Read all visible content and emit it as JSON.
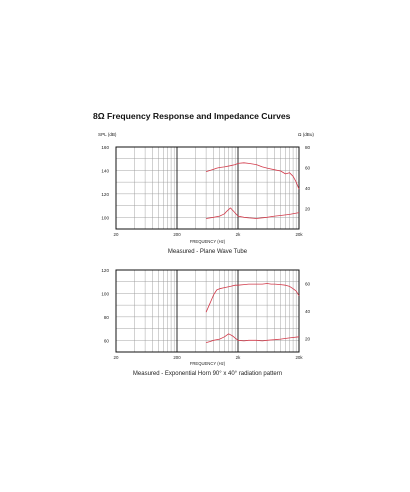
{
  "heading": "8Ω Frequency Response and Impedance Curves",
  "colors": {
    "curve": "#d23a4a",
    "grid": "#9a9a9a",
    "axis": "#111111"
  },
  "chart_data": [
    {
      "type": "line",
      "title": "Measured - Plane Wave Tube",
      "xlabel": "FREQUENCY (Hz)",
      "x_scale": "log",
      "xlim": [
        20,
        20000
      ],
      "x_ticks": [
        "20",
        "200",
        "2k",
        "20k"
      ],
      "ylabel_left": "SPL (dB)",
      "ylabel_right": "Ω (dBu)",
      "y_ticks_left": [
        "160",
        "140",
        "120",
        "100"
      ],
      "y_ticks_right": [
        "80",
        "60",
        "40",
        "20"
      ],
      "ylim": [
        90,
        160
      ],
      "grid": true,
      "series": [
        {
          "x": [
            600,
            700,
            800,
            900,
            1000,
            1200,
            1500,
            1800,
            2000,
            2500,
            3000,
            4000,
            5000,
            6000,
            8000,
            10000,
            12000,
            14000,
            16000,
            18000,
            20000
          ],
          "y": [
            139,
            140,
            141,
            142,
            142.5,
            143,
            144,
            145,
            146,
            146.5,
            146,
            145,
            143,
            142,
            140.5,
            139.5,
            137,
            138,
            135,
            130,
            124
          ]
        },
        {
          "x": [
            600,
            700,
            800,
            1000,
            1200,
            1300,
            1500,
            1700,
            2000,
            2500,
            3000,
            4000,
            6000,
            8000,
            10000,
            14000,
            20000
          ],
          "y": [
            99,
            99.5,
            100,
            101,
            103,
            105,
            108,
            105,
            101,
            100,
            99.5,
            99,
            100,
            101,
            101.5,
            102.5,
            104
          ]
        }
      ]
    },
    {
      "type": "line",
      "title": "Measured - Exponential Horn 90° x 40° radiation pattern",
      "xlabel": "FREQUENCY (Hz)",
      "x_scale": "log",
      "xlim": [
        20,
        20000
      ],
      "x_ticks": [
        "20",
        "200",
        "2k",
        "20k"
      ],
      "y_ticks_left": [
        "120",
        "100",
        "80",
        "60"
      ],
      "y_ticks_right": [
        "60",
        "40",
        "20"
      ],
      "ylim": [
        50,
        120
      ],
      "grid": true,
      "series": [
        {
          "x": [
            600,
            700,
            800,
            900,
            1000,
            1200,
            1500,
            1800,
            2000,
            2500,
            3000,
            4000,
            5000,
            6000,
            7000,
            8000,
            10000,
            12000,
            14000,
            16000,
            18000,
            20000
          ],
          "y": [
            84,
            92,
            99,
            103,
            104,
            105,
            106,
            107,
            107,
            107.5,
            108,
            108,
            108,
            108.5,
            108,
            108,
            107.5,
            107,
            106,
            104,
            102,
            98
          ]
        },
        {
          "x": [
            600,
            700,
            800,
            1000,
            1200,
            1400,
            1600,
            2000,
            2500,
            3000,
            4000,
            5000,
            6000,
            8000,
            10000,
            14000,
            20000
          ],
          "y": [
            58,
            59,
            60,
            61,
            63,
            65.5,
            64,
            60,
            59.5,
            60,
            60,
            59.5,
            60,
            60.5,
            61,
            62,
            63
          ]
        }
      ]
    }
  ]
}
